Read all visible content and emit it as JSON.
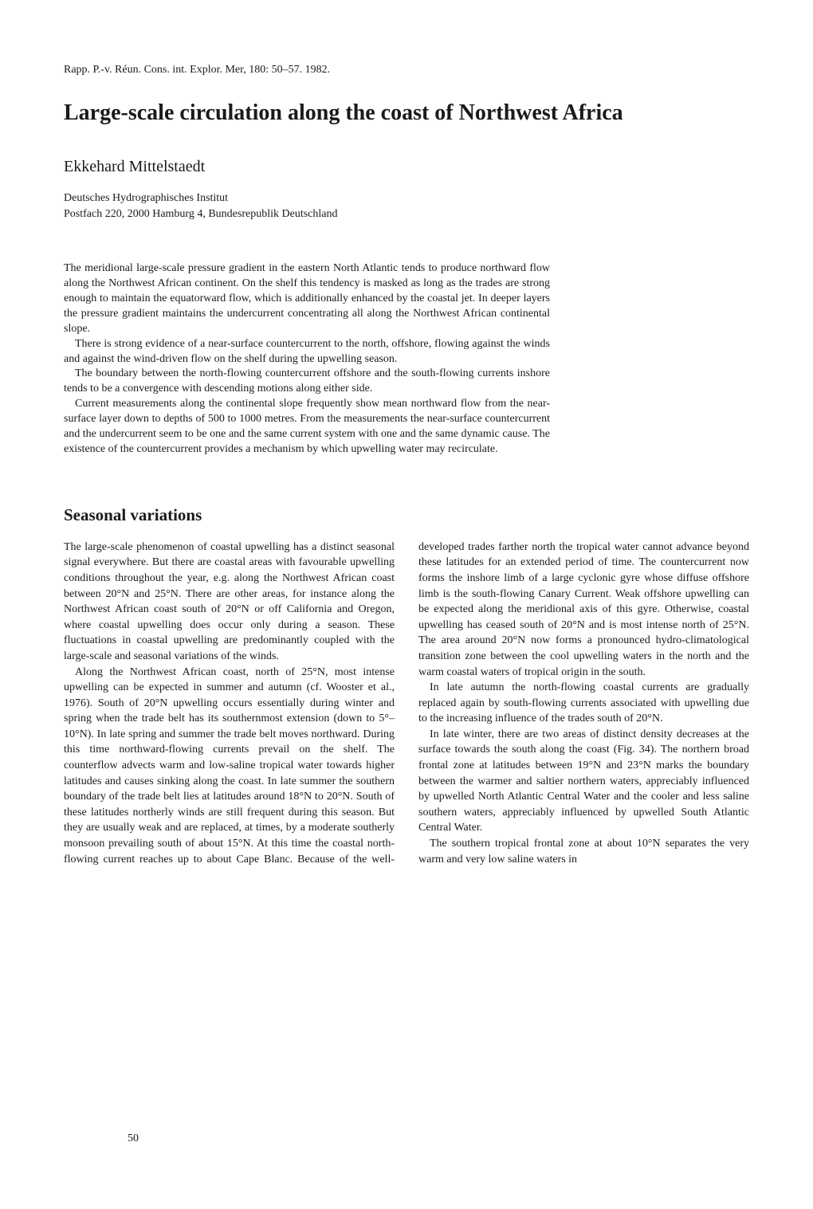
{
  "citation": "Rapp. P.-v. Réun. Cons. int. Explor. Mer, 180: 50–57. 1982.",
  "title": "Large-scale circulation along the coast of Northwest Africa",
  "author": "Ekkehard Mittelstaedt",
  "affiliation_line1": "Deutsches Hydrographisches Institut",
  "affiliation_line2": "Postfach 220, 2000 Hamburg 4, Bundesrepublik Deutschland",
  "abstract": {
    "p1": "The meridional large-scale pressure gradient in the eastern North Atlantic tends to produce northward flow along the Northwest African continent. On the shelf this tendency is masked as long as the trades are strong enough to maintain the equatorward flow, which is additionally enhanced by the coastal jet. In deeper layers the pressure gradient maintains the undercurrent concentrating all along the Northwest African continental slope.",
    "p2": "There is strong evidence of a near-surface countercurrent to the north, offshore, flowing against the winds and against the wind-driven flow on the shelf during the upwelling season.",
    "p3": "The boundary between the north-flowing countercurrent offshore and the south-flowing currents inshore tends to be a convergence with descending motions along either side.",
    "p4": "Current measurements along the continental slope frequently show mean northward flow from the near-surface layer down to depths of 500 to 1000 metres. From the measurements the near-surface countercurrent and the undercurrent seem to be one and the same current system with one and the same dynamic cause. The existence of the countercurrent provides a mechanism by which upwelling water may recirculate."
  },
  "section_heading": "Seasonal variations",
  "body": {
    "p1": "The large-scale phenomenon of coastal upwelling has a distinct seasonal signal everywhere. But there are coastal areas with favourable upwelling conditions throughout the year, e.g. along the Northwest African coast between 20°N and 25°N. There are other areas, for instance along the Northwest African coast south of 20°N or off California and Oregon, where coastal upwelling does occur only during a season. These fluctuations in coastal upwelling are predominantly coupled with the large-scale and seasonal variations of the winds.",
    "p2": "Along the Northwest African coast, north of 25°N, most intense upwelling can be expected in summer and autumn (cf. Wooster et al., 1976). South of 20°N upwelling occurs essentially during winter and spring when the trade belt has its southernmost extension (down to 5°–10°N). In late spring and summer the trade belt moves northward. During this time northward-flowing currents prevail on the shelf. The counterflow advects warm and low-saline tropical water towards higher latitudes and causes sinking along the coast. In late summer the southern boundary of the trade belt lies at latitudes around 18°N to 20°N. South of these latitudes northerly winds are still frequent during this season. But they are usually weak and are replaced, at times, by a moderate southerly monsoon prevailing south of about 15°N. At this time the coastal north-flowing current reaches up to about Cape Blanc. Because of the well-developed trades farther north the tropical water cannot advance beyond these latitudes for an extended period of time. The countercurrent now forms the inshore limb of a large cyclonic gyre whose diffuse offshore limb is the south-flowing Canary Current. Weak offshore upwelling can be expected along the meridional axis of this gyre. Otherwise, coastal upwelling has ceased south of 20°N and is most intense north of 25°N. The area around 20°N now forms a pronounced hydro-climatological transition zone between the cool upwelling waters in the north and the warm coastal waters of tropical origin in the south.",
    "p3": "In late autumn the north-flowing coastal currents are gradually replaced again by south-flowing currents associated with upwelling due to the increasing influence of the trades south of 20°N.",
    "p4": "In late winter, there are two areas of distinct density decreases at the surface towards the south along the coast (Fig. 34). The northern broad frontal zone at latitudes between 19°N and 23°N marks the boundary between the warmer and saltier northern waters, appreciably influenced by upwelled North Atlantic Central Water and the cooler and less saline southern waters, appreciably influenced by upwelled South Atlantic Central Water.",
    "p5": "The southern tropical frontal zone at about 10°N separates the very warm and very low saline waters in"
  },
  "page_number": "50"
}
